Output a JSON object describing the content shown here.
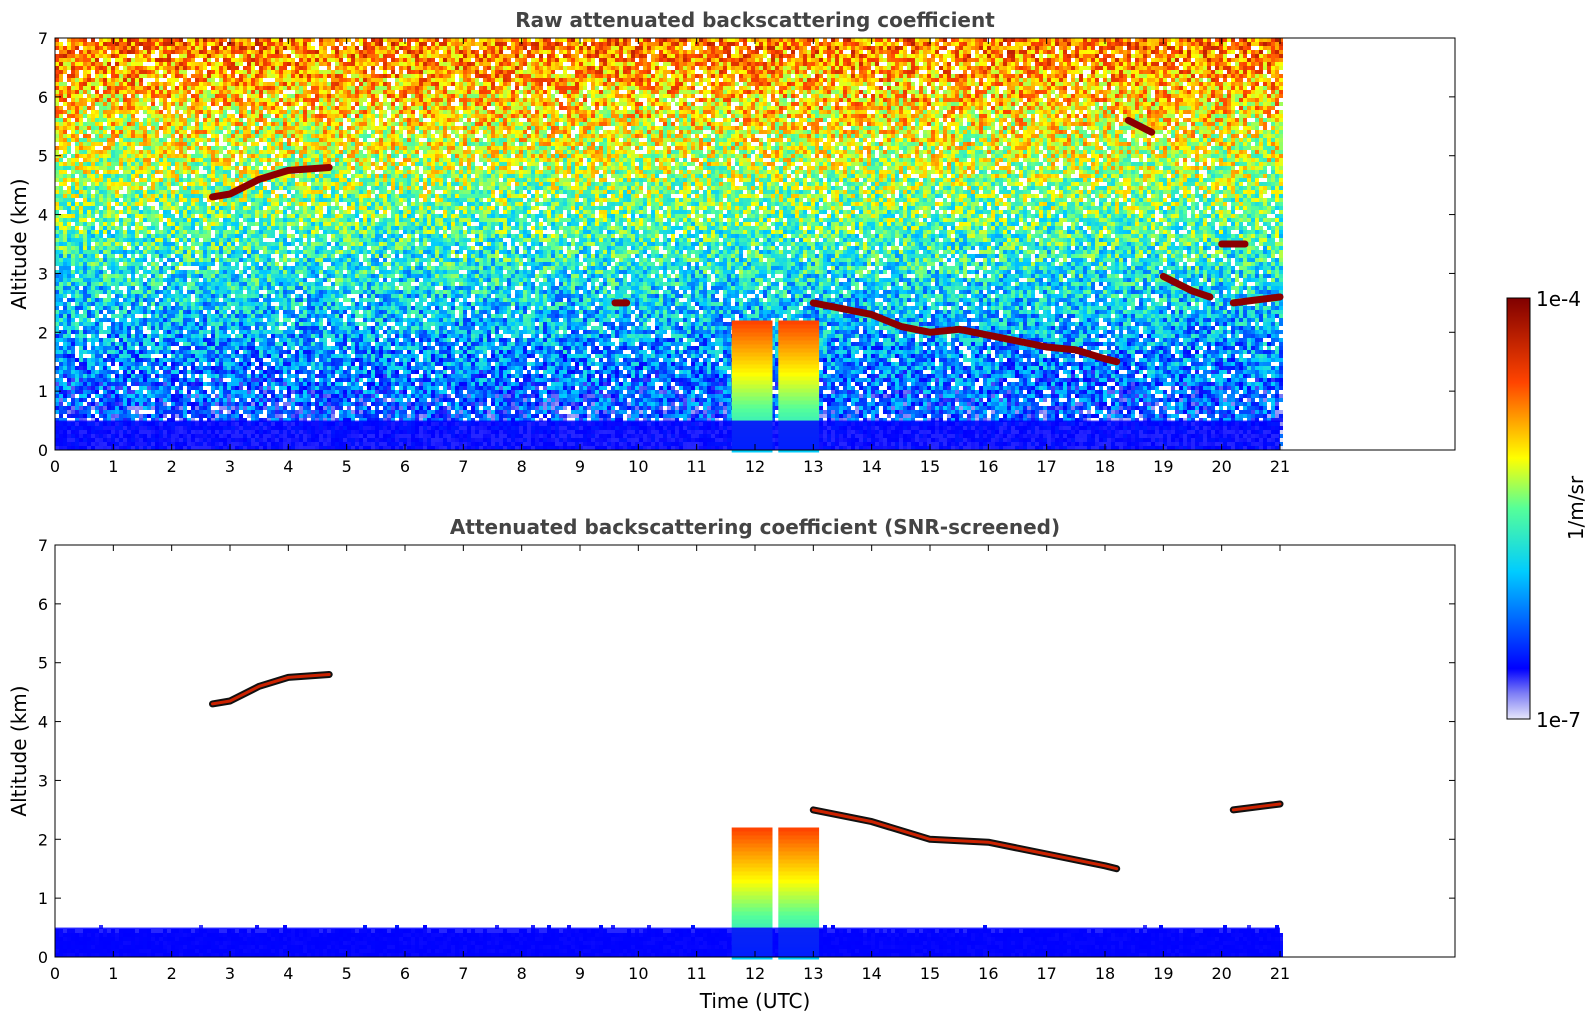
{
  "chart_data": [
    {
      "type": "heatmap",
      "title": "Raw attenuated backscattering coefficient",
      "xlabel": "",
      "ylabel": "Altitude (km)",
      "xlim": [
        0,
        24
      ],
      "ylim": [
        0,
        7
      ],
      "data_extent_hours": [
        0,
        21
      ],
      "x_ticks": [
        "0",
        "1",
        "2",
        "3",
        "4",
        "5",
        "6",
        "7",
        "8",
        "9",
        "10",
        "11",
        "12",
        "13",
        "14",
        "15",
        "16",
        "17",
        "18",
        "19",
        "20",
        "21"
      ],
      "y_ticks": [
        "0",
        "1",
        "2",
        "3",
        "4",
        "5",
        "6",
        "7"
      ],
      "colormap": "jet",
      "background_noise": "altitude-dependent noisy field (blue near ground, green/orange aloft)",
      "features": [
        {
          "kind": "cloud layer",
          "points": [
            [
              2.7,
              4.3
            ],
            [
              3.0,
              4.35
            ],
            [
              3.5,
              4.6
            ],
            [
              4.0,
              4.75
            ],
            [
              4.7,
              4.8
            ]
          ],
          "color_level": "max"
        },
        {
          "kind": "cloud layer",
          "points": [
            [
              9.6,
              2.5
            ],
            [
              9.8,
              2.5
            ]
          ],
          "color_level": "max"
        },
        {
          "kind": "cloud layer",
          "points": [
            [
              13.0,
              2.5
            ],
            [
              13.5,
              2.4
            ],
            [
              14.0,
              2.3
            ],
            [
              14.5,
              2.1
            ],
            [
              15.0,
              2.0
            ],
            [
              15.5,
              2.05
            ],
            [
              16.0,
              1.95
            ],
            [
              16.5,
              1.85
            ],
            [
              17.0,
              1.75
            ],
            [
              17.5,
              1.7
            ],
            [
              18.0,
              1.55
            ],
            [
              18.2,
              1.5
            ]
          ],
          "color_level": "max"
        },
        {
          "kind": "cloud layer",
          "points": [
            [
              19.0,
              2.95
            ],
            [
              19.3,
              2.8
            ],
            [
              19.5,
              2.7
            ],
            [
              19.8,
              2.6
            ]
          ],
          "color_level": "max"
        },
        {
          "kind": "cloud layer",
          "points": [
            [
              20.2,
              2.5
            ],
            [
              20.6,
              2.55
            ],
            [
              21.0,
              2.6
            ]
          ],
          "color_level": "max"
        },
        {
          "kind": "cloud fragment",
          "points": [
            [
              20.0,
              3.5
            ],
            [
              20.4,
              3.5
            ]
          ],
          "color_level": "max"
        },
        {
          "kind": "cloud fragment",
          "points": [
            [
              18.4,
              5.6
            ],
            [
              18.8,
              5.4
            ]
          ],
          "color_level": "max"
        },
        {
          "kind": "precipitation column",
          "x_range": [
            11.6,
            12.3
          ],
          "top_km": 2.2,
          "color_level": "high"
        },
        {
          "kind": "precipitation column",
          "x_range": [
            12.4,
            13.1
          ],
          "top_km": 2.2,
          "color_level": "high"
        },
        {
          "kind": "aerosol layer",
          "x_range": [
            0,
            21
          ],
          "top_km": 0.5,
          "color_level": "low"
        }
      ]
    },
    {
      "type": "heatmap",
      "title": "Attenuated backscattering coefficient (SNR-screened)",
      "xlabel": "Time (UTC)",
      "ylabel": "Altitude (km)",
      "xlim": [
        0,
        24
      ],
      "ylim": [
        0,
        7
      ],
      "data_extent_hours": [
        0,
        21
      ],
      "x_ticks": [
        "0",
        "1",
        "2",
        "3",
        "4",
        "5",
        "6",
        "7",
        "8",
        "9",
        "10",
        "11",
        "12",
        "13",
        "14",
        "15",
        "16",
        "17",
        "18",
        "19",
        "20",
        "21"
      ],
      "y_ticks": [
        "0",
        "1",
        "2",
        "3",
        "4",
        "5",
        "6",
        "7"
      ],
      "colormap": "jet",
      "screened": true,
      "features": [
        {
          "kind": "cloud layer",
          "points": [
            [
              2.7,
              4.3
            ],
            [
              3.0,
              4.35
            ],
            [
              3.5,
              4.6
            ],
            [
              4.0,
              4.75
            ],
            [
              4.7,
              4.8
            ]
          ],
          "color_level": "max"
        },
        {
          "kind": "cloud layer",
          "points": [
            [
              13.0,
              2.5
            ],
            [
              14.0,
              2.3
            ],
            [
              15.0,
              2.0
            ],
            [
              16.0,
              1.95
            ],
            [
              17.0,
              1.75
            ],
            [
              18.0,
              1.55
            ],
            [
              18.2,
              1.5
            ]
          ],
          "color_level": "max"
        },
        {
          "kind": "cloud layer",
          "points": [
            [
              20.2,
              2.5
            ],
            [
              21.0,
              2.6
            ]
          ],
          "color_level": "max"
        },
        {
          "kind": "precipitation column",
          "x_range": [
            11.6,
            12.3
          ],
          "top_km": 2.2,
          "color_level": "high"
        },
        {
          "kind": "precipitation column",
          "x_range": [
            12.4,
            13.1
          ],
          "top_km": 2.2,
          "color_level": "high"
        },
        {
          "kind": "aerosol layer",
          "x_range": [
            0,
            21
          ],
          "top_km": 0.5,
          "color_level": "low"
        }
      ]
    }
  ],
  "colorbar": {
    "label": "1/m/sr",
    "max_label": "1e-4",
    "min_label": "1e-7",
    "colormap": "jet"
  }
}
